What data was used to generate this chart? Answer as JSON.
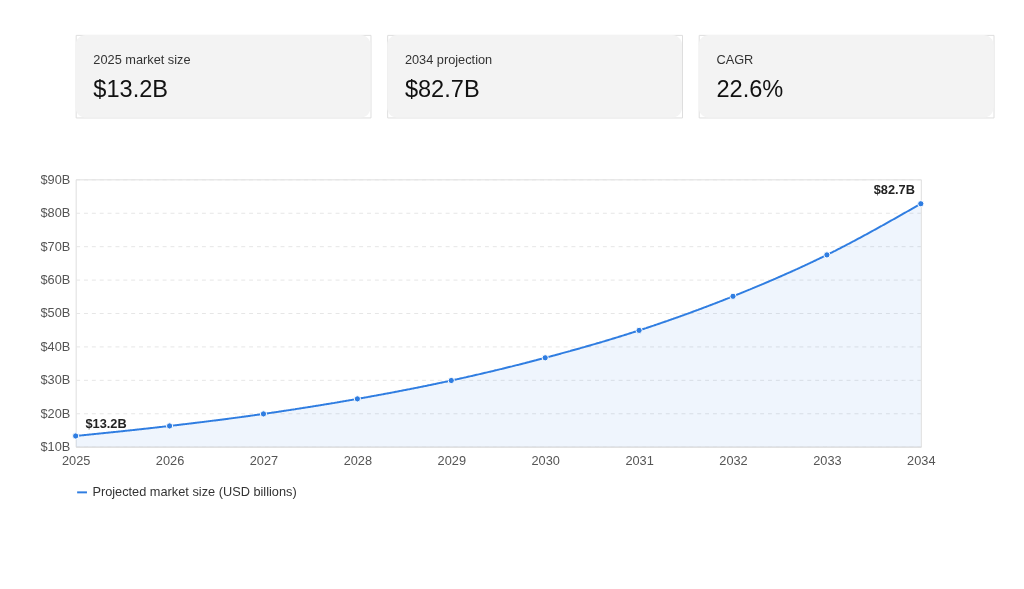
{
  "chart_data": [
    {
      "type": "other",
      "annotations": [
        "2025 market size",
        "$13.2B",
        "2034 projection",
        "$82.7B",
        "CAGR",
        "22.6%"
      ]
    },
    {
      "type": "area",
      "categories": [
        "2025",
        "2026",
        "2027",
        "2028",
        "2029",
        "2030",
        "2031",
        "2032",
        "2033",
        "2034"
      ],
      "series": [
        {
          "name": "Projected market size (USD billions)",
          "color": "#2f7de1",
          "values": [
            13.2,
            16.2,
            19.8,
            24.3,
            29.8,
            36.6,
            44.8,
            55.0,
            67.4,
            82.7
          ]
        }
      ],
      "ylim": [
        10,
        90
      ],
      "yticks": [
        {
          "value": 10,
          "label": "$10B"
        },
        {
          "value": 20,
          "label": "$20B"
        },
        {
          "value": 30,
          "label": "$30B"
        },
        {
          "value": 40,
          "label": "$40B"
        },
        {
          "value": 50,
          "label": "$50B"
        },
        {
          "value": 60,
          "label": "$60B"
        },
        {
          "value": 70,
          "label": "$70B"
        },
        {
          "value": 80,
          "label": "$80B"
        },
        {
          "value": 90,
          "label": "$90B"
        }
      ],
      "grid": "y",
      "legend": "bottom",
      "marker": "circle",
      "line_style": "solid",
      "annotations": [
        {
          "text": "$13.2B",
          "x": "2025",
          "y": 13.2
        },
        {
          "text": "$82.7B",
          "x": "2034",
          "y": 82.7
        }
      ]
    }
  ]
}
